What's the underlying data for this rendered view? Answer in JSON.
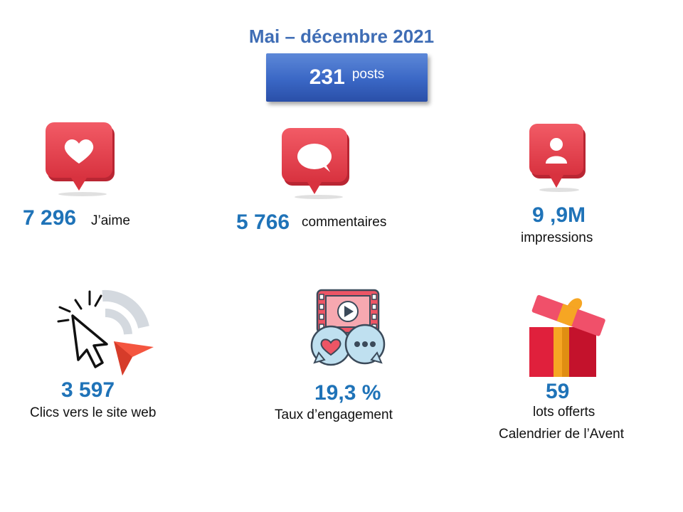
{
  "header": {
    "title": "Mai – décembre 2021",
    "posts_count": "231",
    "posts_label": "posts"
  },
  "stats": {
    "likes": {
      "value": "7 296",
      "label": "J’aime",
      "icon": "heart-notification-icon"
    },
    "comments": {
      "value": "5 766",
      "label": "commentaires",
      "icon": "comment-notification-icon"
    },
    "impressions": {
      "value": "9 ,9M",
      "label": "impressions",
      "icon": "user-notification-icon"
    },
    "clicks": {
      "value": "3 597",
      "label": "Clics vers le site web",
      "icon": "cursor-click-icon"
    },
    "engagement": {
      "value": "19,3 %",
      "label": "Taux d’engagement",
      "icon": "video-engagement-icon"
    },
    "gifts": {
      "value": "59",
      "label_line1": "lots offerts",
      "label_line2": "Calendrier de l’Avent",
      "icon": "gift-box-icon"
    }
  },
  "colors": {
    "title": "#3f6db5",
    "value": "#1f73b8",
    "notification_red": "#e8424f",
    "button_blue": "#3a67c5"
  }
}
